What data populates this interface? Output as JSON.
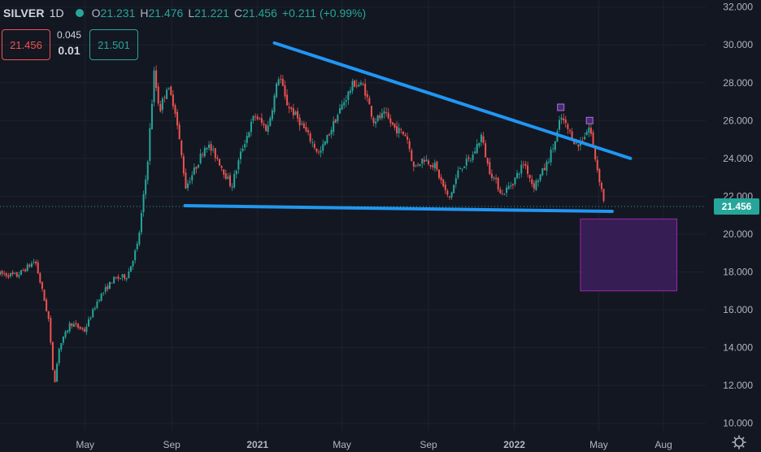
{
  "header": {
    "symbol": "SILVER",
    "interval": "1D",
    "open_label": "O",
    "open": "21.231",
    "high_label": "H",
    "high": "21.476",
    "low_label": "L",
    "low": "21.221",
    "close_label": "C",
    "close": "21.456",
    "change": "+0.211 (+0.99%)"
  },
  "trade": {
    "sell_price": "21.456",
    "spread_top": "0.045",
    "spread_bottom": "0.01",
    "buy_price": "21.501"
  },
  "colors": {
    "background": "#131722",
    "up": "#26a69a",
    "down": "#ef5350",
    "trendline": "#2196f3",
    "zone_fill": "#3d1f5c",
    "zone_border": "#9c27b0",
    "price_tag": "#26a69a"
  },
  "chart_data": {
    "type": "candlestick",
    "y_axis": {
      "ticks": [
        10,
        12,
        14,
        16,
        18,
        20,
        22,
        24,
        26,
        28,
        30,
        32
      ],
      "tick_labels": [
        "10.000",
        "12.000",
        "14.000",
        "16.000",
        "18.000",
        "20.000",
        "22.000",
        "24.000",
        "26.000",
        "28.000",
        "30.000",
        "32.000"
      ],
      "range": [
        9.6,
        32.2
      ],
      "position": "right"
    },
    "x_axis": {
      "labels": [
        {
          "text": "May",
          "date": "2020-05-01"
        },
        {
          "text": "Sep",
          "date": "2020-09-01"
        },
        {
          "text": "2021",
          "date": "2021-01-01",
          "bold": true
        },
        {
          "text": "May",
          "date": "2021-05-01"
        },
        {
          "text": "Sep",
          "date": "2021-09-01"
        },
        {
          "text": "2022",
          "date": "2022-01-01",
          "bold": true
        },
        {
          "text": "May",
          "date": "2022-05-01"
        },
        {
          "text": "Aug",
          "date": "2022-08-01"
        }
      ],
      "range": [
        "2020-01-01",
        "2022-09-30"
      ]
    },
    "last_price": 21.456,
    "price_path": [
      [
        "2020-01-01",
        17.9
      ],
      [
        "2020-01-25",
        17.8
      ],
      [
        "2020-02-20",
        18.6
      ],
      [
        "2020-03-01",
        17.0
      ],
      [
        "2020-03-10",
        15.5
      ],
      [
        "2020-03-18",
        12.0
      ],
      [
        "2020-03-25",
        14.0
      ],
      [
        "2020-04-10",
        15.3
      ],
      [
        "2020-04-30",
        14.9
      ],
      [
        "2020-05-20",
        16.6
      ],
      [
        "2020-06-10",
        17.6
      ],
      [
        "2020-06-30",
        17.8
      ],
      [
        "2020-07-15",
        19.5
      ],
      [
        "2020-07-28",
        23.5
      ],
      [
        "2020-08-07",
        28.5
      ],
      [
        "2020-08-15",
        26.5
      ],
      [
        "2020-08-25",
        27.8
      ],
      [
        "2020-09-05",
        26.8
      ],
      [
        "2020-09-21",
        22.5
      ],
      [
        "2020-10-05",
        23.5
      ],
      [
        "2020-10-20",
        24.8
      ],
      [
        "2020-11-05",
        24.0
      ],
      [
        "2020-11-25",
        22.5
      ],
      [
        "2020-12-10",
        24.5
      ],
      [
        "2020-12-28",
        26.3
      ],
      [
        "2021-01-15",
        25.5
      ],
      [
        "2021-02-01",
        28.5
      ],
      [
        "2021-02-10",
        27.0
      ],
      [
        "2021-03-01",
        26.0
      ],
      [
        "2021-03-30",
        24.2
      ],
      [
        "2021-04-15",
        25.5
      ],
      [
        "2021-05-01",
        26.8
      ],
      [
        "2021-05-18",
        28.0
      ],
      [
        "2021-06-01",
        27.8
      ],
      [
        "2021-06-15",
        26.0
      ],
      [
        "2021-07-01",
        26.3
      ],
      [
        "2021-07-15",
        25.6
      ],
      [
        "2021-08-01",
        25.2
      ],
      [
        "2021-08-11",
        23.5
      ],
      [
        "2021-08-25",
        24.0
      ],
      [
        "2021-09-10",
        23.6
      ],
      [
        "2021-09-30",
        21.8
      ],
      [
        "2021-10-15",
        23.5
      ],
      [
        "2021-11-01",
        24.0
      ],
      [
        "2021-11-15",
        25.2
      ],
      [
        "2021-11-25",
        23.5
      ],
      [
        "2021-12-15",
        22.1
      ],
      [
        "2021-12-31",
        22.8
      ],
      [
        "2022-01-15",
        23.8
      ],
      [
        "2022-01-28",
        22.5
      ],
      [
        "2022-02-15",
        23.6
      ],
      [
        "2022-03-01",
        25.0
      ],
      [
        "2022-03-08",
        26.2
      ],
      [
        "2022-03-20",
        25.4
      ],
      [
        "2022-04-01",
        24.6
      ],
      [
        "2022-04-18",
        25.7
      ],
      [
        "2022-04-28",
        23.6
      ],
      [
        "2022-05-10",
        21.456
      ]
    ],
    "annotations": {
      "upper_trendline": {
        "from": [
          "2021-01-25",
          30.1
        ],
        "to": [
          "2022-06-15",
          24.0
        ]
      },
      "lower_trendline": {
        "from": [
          "2020-09-20",
          21.5
        ],
        "to": [
          "2022-05-20",
          21.2
        ]
      },
      "target_zone": {
        "from_date": "2022-04-05",
        "to_date": "2022-08-20",
        "top": 20.8,
        "bottom": 17.0
      },
      "peak_markers": [
        [
          "2022-03-08",
          26.7
        ],
        [
          "2022-04-18",
          26.0
        ]
      ]
    }
  }
}
